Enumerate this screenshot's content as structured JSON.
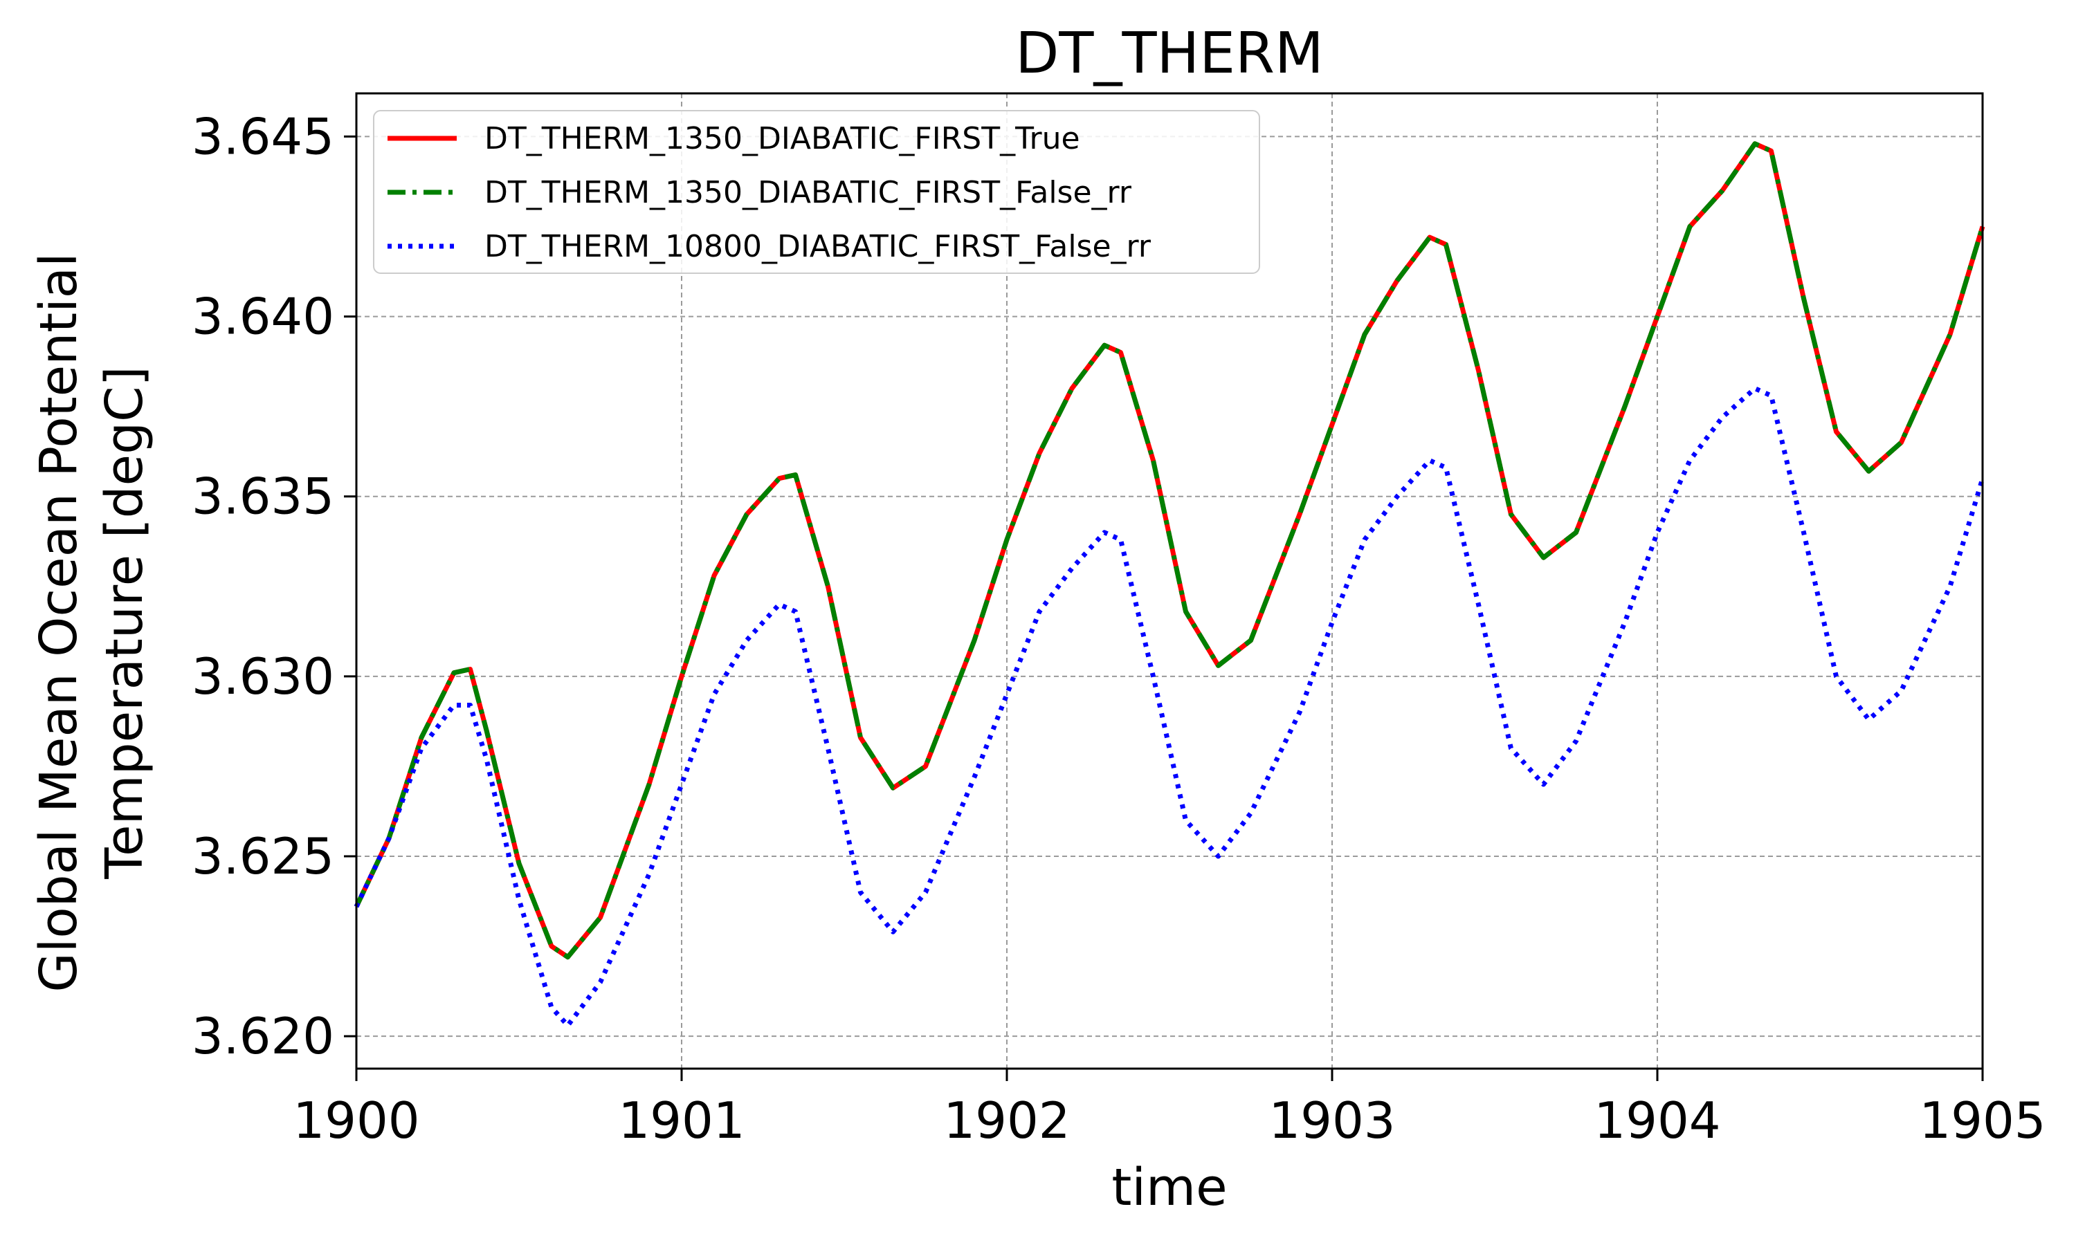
{
  "chart_data": {
    "type": "line",
    "title": "DT_THERM",
    "xlabel": "time",
    "ylabel": [
      "Global Mean Ocean Potential",
      "Temperature [degC]"
    ],
    "xlim": [
      1900,
      1905
    ],
    "ylim": [
      3.6191,
      3.6462
    ],
    "xticks": [
      1900,
      1901,
      1902,
      1903,
      1904,
      1905
    ],
    "xtick_labels": [
      "1900",
      "1901",
      "1902",
      "1903",
      "1904",
      "1905"
    ],
    "yticks": [
      3.62,
      3.625,
      3.63,
      3.635,
      3.64,
      3.645
    ],
    "ytick_labels": [
      "3.620",
      "3.625",
      "3.630",
      "3.635",
      "3.640",
      "3.645"
    ],
    "grid": true,
    "legend_position": "upper-left",
    "x": [
      1900.0,
      1900.1,
      1900.2,
      1900.3,
      1900.35,
      1900.4,
      1900.5,
      1900.6,
      1900.65,
      1900.75,
      1900.9,
      1901.0,
      1901.1,
      1901.2,
      1901.3,
      1901.35,
      1901.45,
      1901.55,
      1901.65,
      1901.75,
      1901.9,
      1902.0,
      1902.1,
      1902.2,
      1902.3,
      1902.35,
      1902.45,
      1902.55,
      1902.65,
      1902.75,
      1902.9,
      1903.0,
      1903.1,
      1903.2,
      1903.3,
      1903.35,
      1903.45,
      1903.55,
      1903.65,
      1903.75,
      1903.9,
      1904.0,
      1904.1,
      1904.2,
      1904.3,
      1904.35,
      1904.45,
      1904.55,
      1904.65,
      1904.75,
      1904.9,
      1905.0
    ],
    "series": [
      {
        "name": "DT_THERM_1350_DIABATIC_FIRST_True",
        "color": "#ff0000",
        "dash": "solid",
        "values": [
          3.6236,
          3.6255,
          3.6283,
          3.6301,
          3.6302,
          3.6285,
          3.6248,
          3.6225,
          3.6222,
          3.6233,
          3.627,
          3.63,
          3.6328,
          3.6345,
          3.6355,
          3.6356,
          3.6325,
          3.6283,
          3.6269,
          3.6275,
          3.631,
          3.6338,
          3.6362,
          3.638,
          3.6392,
          3.639,
          3.636,
          3.6318,
          3.6303,
          3.631,
          3.6345,
          3.637,
          3.6395,
          3.641,
          3.6422,
          3.642,
          3.6385,
          3.6345,
          3.6333,
          3.634,
          3.6375,
          3.64,
          3.6425,
          3.6435,
          3.6448,
          3.6446,
          3.6405,
          3.6368,
          3.6357,
          3.6365,
          3.6395,
          3.6425
        ]
      },
      {
        "name": "DT_THERM_1350_DIABATIC_FIRST_False_rr",
        "color": "#008000",
        "dash": "dashdot",
        "values": [
          3.6236,
          3.6255,
          3.6283,
          3.6301,
          3.6302,
          3.6285,
          3.6248,
          3.6225,
          3.6222,
          3.6233,
          3.627,
          3.63,
          3.6328,
          3.6345,
          3.6355,
          3.6356,
          3.6325,
          3.6283,
          3.6269,
          3.6275,
          3.631,
          3.6338,
          3.6362,
          3.638,
          3.6392,
          3.639,
          3.636,
          3.6318,
          3.6303,
          3.631,
          3.6345,
          3.637,
          3.6395,
          3.641,
          3.6422,
          3.642,
          3.6385,
          3.6345,
          3.6333,
          3.634,
          3.6375,
          3.64,
          3.6425,
          3.6435,
          3.6448,
          3.6446,
          3.6405,
          3.6368,
          3.6357,
          3.6365,
          3.6395,
          3.6425
        ]
      },
      {
        "name": "DT_THERM_10800_DIABATIC_FIRST_False_rr",
        "color": "#0000ff",
        "dash": "dotted",
        "values": [
          3.6236,
          3.6255,
          3.628,
          3.6292,
          3.6292,
          3.6277,
          3.6238,
          3.6208,
          3.6203,
          3.6215,
          3.6245,
          3.627,
          3.6295,
          3.631,
          3.632,
          3.6318,
          3.628,
          3.624,
          3.6229,
          3.624,
          3.6272,
          3.6295,
          3.6318,
          3.633,
          3.634,
          3.6338,
          3.63,
          3.626,
          3.625,
          3.6262,
          3.629,
          3.6315,
          3.6338,
          3.635,
          3.636,
          3.6358,
          3.632,
          3.628,
          3.627,
          3.6282,
          3.6315,
          3.634,
          3.636,
          3.6372,
          3.638,
          3.6378,
          3.634,
          3.63,
          3.6288,
          3.6296,
          3.6325,
          3.6355
        ]
      }
    ]
  }
}
